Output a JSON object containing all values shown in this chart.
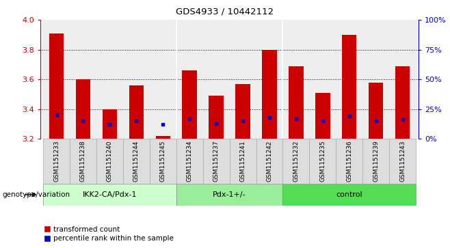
{
  "title": "GDS4933 / 10442112",
  "samples": [
    "GSM1151233",
    "GSM1151238",
    "GSM1151240",
    "GSM1151244",
    "GSM1151245",
    "GSM1151234",
    "GSM1151237",
    "GSM1151241",
    "GSM1151242",
    "GSM1151232",
    "GSM1151235",
    "GSM1151236",
    "GSM1151239",
    "GSM1151243"
  ],
  "red_values": [
    3.91,
    3.6,
    3.4,
    3.56,
    3.22,
    3.66,
    3.49,
    3.57,
    3.8,
    3.69,
    3.51,
    3.9,
    3.58,
    3.69
  ],
  "blue_percentile": [
    20,
    15,
    12,
    15,
    12,
    17,
    13,
    15,
    18,
    17,
    15,
    19,
    15,
    16
  ],
  "ylim_left": [
    3.2,
    4.0
  ],
  "ylim_right": [
    0,
    100
  ],
  "yticks_left": [
    3.2,
    3.4,
    3.6,
    3.8,
    4.0
  ],
  "yticks_right": [
    0,
    25,
    50,
    75,
    100
  ],
  "groups": [
    {
      "label": "IKK2-CA/Pdx-1",
      "start": 0,
      "end": 5,
      "color": "#ccffcc"
    },
    {
      "label": "Pdx-1+/-",
      "start": 5,
      "end": 9,
      "color": "#99ee99"
    },
    {
      "label": "control",
      "start": 9,
      "end": 14,
      "color": "#55dd55"
    }
  ],
  "bar_color": "#cc0000",
  "dot_color": "#0000cc",
  "bg_color": "#ffffff",
  "label_color_left": "#cc0000",
  "label_color_right": "#0000cc",
  "xlabel_bottom": "genotype/variation",
  "legend_red": "transformed count",
  "legend_blue": "percentile rank within the sample",
  "bar_width": 0.55
}
